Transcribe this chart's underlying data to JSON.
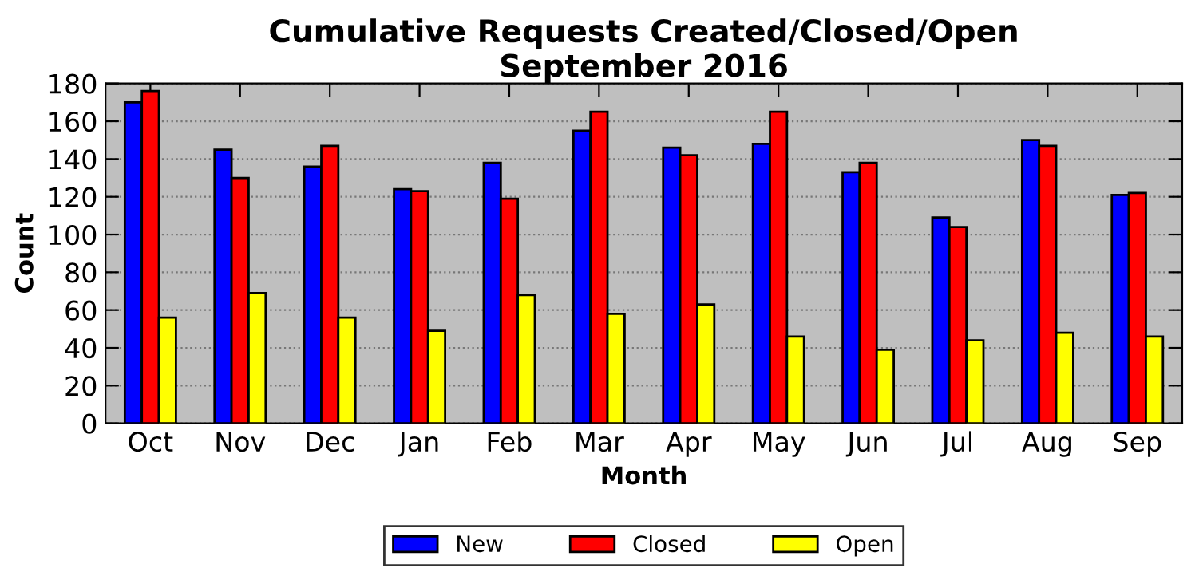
{
  "chart_data": {
    "type": "bar",
    "title": "Cumulative Requests Created/Closed/Open\nSeptember 2016",
    "xlabel": "Month",
    "ylabel": "Count",
    "categories": [
      "Oct",
      "Nov",
      "Dec",
      "Jan",
      "Feb",
      "Mar",
      "Apr",
      "May",
      "Jun",
      "Jul",
      "Aug",
      "Sep"
    ],
    "series": [
      {
        "name": "New",
        "color": "#0000ff",
        "values": [
          170,
          145,
          136,
          124,
          138,
          155,
          146,
          148,
          133,
          109,
          150,
          121
        ]
      },
      {
        "name": "Closed",
        "color": "#ff0000",
        "values": [
          176,
          130,
          147,
          123,
          119,
          165,
          142,
          165,
          138,
          104,
          147,
          122
        ]
      },
      {
        "name": "Open",
        "color": "#ffff00",
        "values": [
          56,
          69,
          56,
          49,
          68,
          58,
          63,
          46,
          39,
          44,
          48,
          46
        ]
      }
    ],
    "ylim": [
      0,
      180
    ],
    "yticks": [
      0,
      20,
      40,
      60,
      80,
      100,
      120,
      140,
      160,
      180
    ],
    "grid": "y",
    "legend": "bottom"
  }
}
